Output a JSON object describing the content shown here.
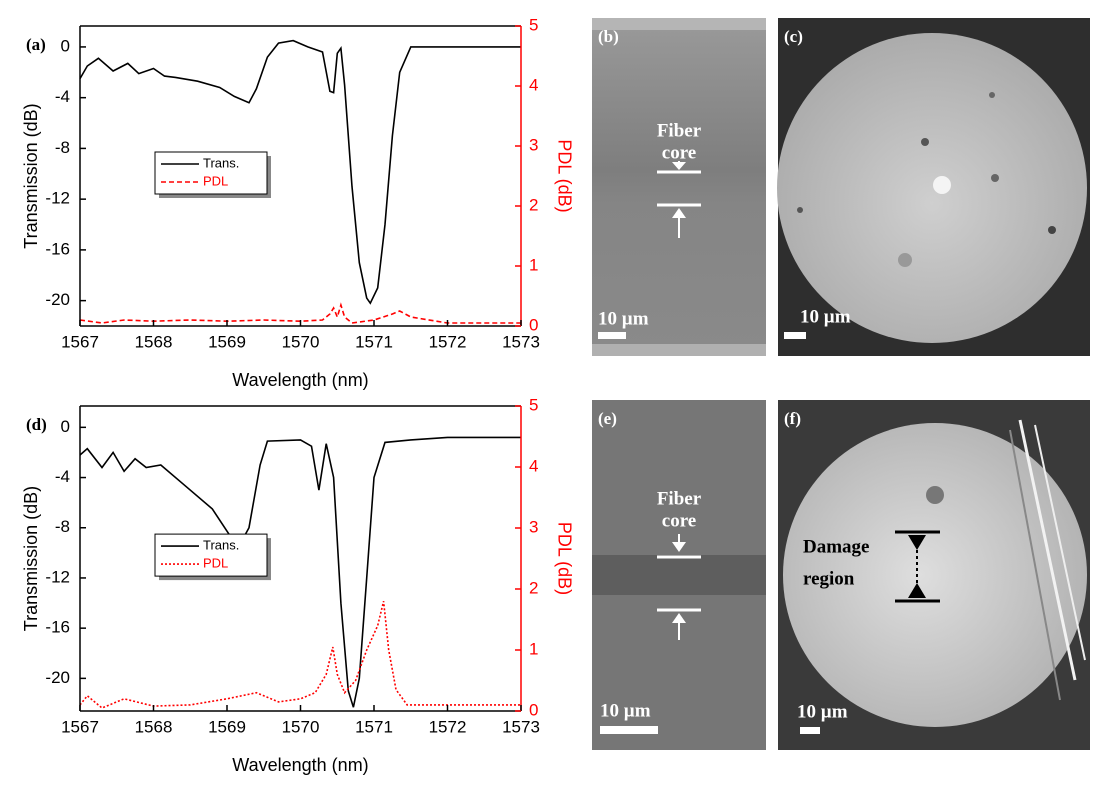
{
  "chart_data": [
    {
      "type": "line",
      "panel": "(a)",
      "xlabel": "Wavelength (nm)",
      "ylabel": "Transmission (dB)",
      "y2label": "PDL (dB)",
      "xlim": [
        1567,
        1573
      ],
      "xticks": [
        1567,
        1568,
        1569,
        1570,
        1571,
        1572,
        1573
      ],
      "ylim": [
        -22,
        1.65
      ],
      "yticks": [
        0,
        -4,
        -8,
        -12,
        -16,
        -20
      ],
      "y2lim": [
        0,
        5
      ],
      "y2ticks": [
        0,
        1,
        2,
        3,
        4,
        5
      ],
      "y2color": "#ff0000",
      "legend": "center left",
      "series": [
        {
          "name": "Trans.",
          "color": "#000000",
          "dash": "solid",
          "x": [
            1567,
            1567.1,
            1567.25,
            1567.45,
            1567.65,
            1567.8,
            1568,
            1568.15,
            1568.3,
            1568.6,
            1568.9,
            1569.1,
            1569.3,
            1569.4,
            1569.55,
            1569.7,
            1569.9,
            1570.1,
            1570.3,
            1570.4,
            1570.45,
            1570.5,
            1570.55,
            1570.6,
            1570.7,
            1570.8,
            1570.9,
            1570.95,
            1571.05,
            1571.15,
            1571.25,
            1571.35,
            1571.5,
            1572,
            1573
          ],
          "values": [
            -2.5,
            -1.5,
            -0.9,
            -1.9,
            -1.3,
            -2.1,
            -1.7,
            -2.3,
            -2.4,
            -2.7,
            -3.2,
            -3.9,
            -4.4,
            -3.3,
            -0.8,
            0.3,
            0.5,
            0,
            -0.4,
            -3.5,
            -3.6,
            -0.5,
            -0.1,
            -3,
            -11,
            -17,
            -19.8,
            -20.2,
            -19,
            -14,
            -7,
            -2,
            0,
            0,
            0
          ]
        },
        {
          "name": "PDL",
          "color": "#ff0000",
          "dash": "dashed",
          "axis": "y2",
          "x": [
            1567,
            1567.3,
            1567.6,
            1568,
            1568.5,
            1569,
            1569.5,
            1570,
            1570.3,
            1570.4,
            1570.45,
            1570.5,
            1570.55,
            1570.6,
            1570.7,
            1571,
            1571.25,
            1571.35,
            1571.5,
            1572,
            1573
          ],
          "values": [
            0.1,
            0.05,
            0.1,
            0.08,
            0.1,
            0.08,
            0.1,
            0.08,
            0.1,
            0.2,
            0.3,
            0.15,
            0.35,
            0.15,
            0.05,
            0.1,
            0.2,
            0.25,
            0.15,
            0.05,
            0.05
          ]
        }
      ]
    },
    {
      "type": "line",
      "panel": "(d)",
      "xlabel": "Wavelength (nm)",
      "ylabel": "Transmission (dB)",
      "y2label": "PDL (dB)",
      "xlim": [
        1567,
        1573
      ],
      "xticks": [
        1567,
        1568,
        1569,
        1570,
        1571,
        1572,
        1573
      ],
      "ylim": [
        -22.6,
        1.7
      ],
      "yticks": [
        0,
        -4,
        -8,
        -12,
        -16,
        -20
      ],
      "y2lim": [
        0,
        5
      ],
      "y2ticks": [
        0,
        1,
        2,
        3,
        4,
        5
      ],
      "y2color": "#ff0000",
      "legend": "center left",
      "series": [
        {
          "name": "Trans.",
          "color": "#000000",
          "dash": "solid",
          "x": [
            1567,
            1567.1,
            1567.3,
            1567.45,
            1567.6,
            1567.75,
            1567.9,
            1568.1,
            1568.4,
            1568.8,
            1569.15,
            1569.3,
            1569.45,
            1569.55,
            1570,
            1570.15,
            1570.25,
            1570.35,
            1570.45,
            1570.55,
            1570.65,
            1570.72,
            1570.8,
            1570.9,
            1571,
            1571.15,
            1571.5,
            1572,
            1573
          ],
          "values": [
            -2.2,
            -1.7,
            -3.2,
            -2,
            -3.5,
            -2.5,
            -3.2,
            -3,
            -4.5,
            -6.5,
            -9.6,
            -8,
            -3,
            -1.1,
            -1,
            -1.5,
            -5,
            -1.3,
            -4,
            -14,
            -21,
            -22.3,
            -20,
            -12,
            -4,
            -1.2,
            -1,
            -0.8,
            -0.8
          ]
        },
        {
          "name": "PDL",
          "color": "#ff0000",
          "dash": "dotted",
          "axis": "y2",
          "x": [
            1567,
            1567.1,
            1567.3,
            1567.6,
            1568,
            1568.5,
            1569,
            1569.4,
            1569.7,
            1570,
            1570.2,
            1570.35,
            1570.44,
            1570.5,
            1570.6,
            1570.75,
            1570.9,
            1571.05,
            1571.13,
            1571.2,
            1571.3,
            1571.45,
            1572,
            1573
          ],
          "values": [
            0.1,
            0.25,
            0.05,
            0.2,
            0.08,
            0.1,
            0.2,
            0.3,
            0.15,
            0.2,
            0.3,
            0.6,
            1.05,
            0.6,
            0.3,
            0.5,
            1.0,
            1.4,
            1.8,
            1.0,
            0.35,
            0.1,
            0.1,
            0.1
          ]
        }
      ]
    }
  ],
  "panels": [
    {
      "label": "(b)",
      "annotation": [
        "Fiber",
        "core"
      ],
      "scale": "10 µm"
    },
    {
      "label": "(c)",
      "scale": "10 µm"
    },
    {
      "label": "(e)",
      "annotation": [
        "Fiber",
        "core"
      ],
      "scale": "10 µm"
    },
    {
      "label": "(f)",
      "annotation": [
        "Damage",
        "region"
      ],
      "scale": "10 µm"
    }
  ]
}
